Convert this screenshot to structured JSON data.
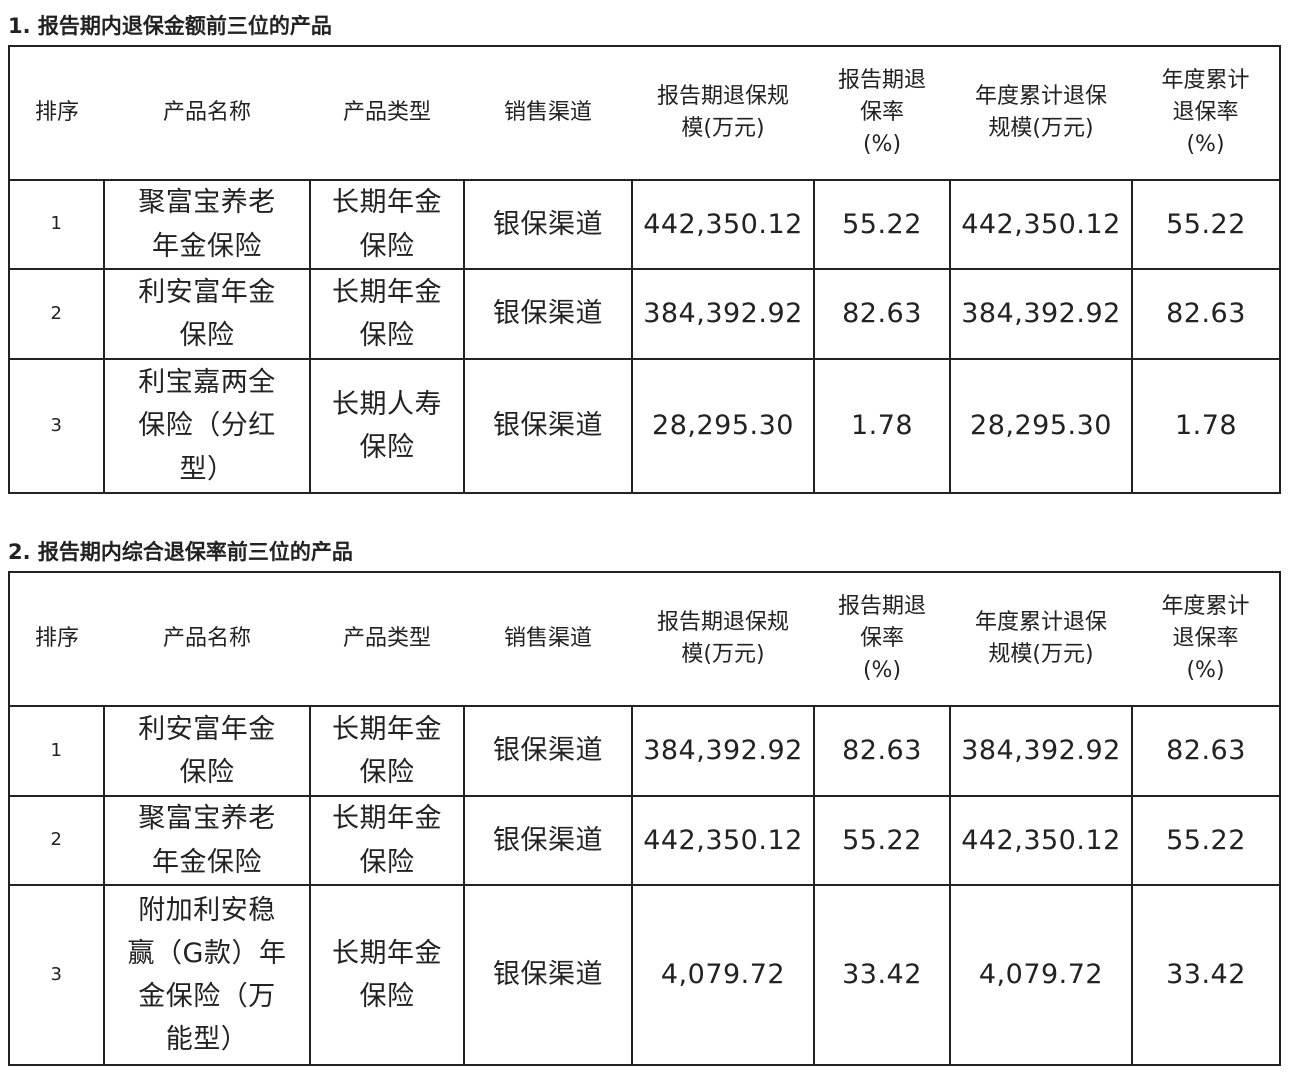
{
  "headers": [
    "排序",
    "产品名称",
    "产品类型",
    "销售渠道",
    "报告期退保规\n模(万元)",
    "报告期退\n保率\n(%)",
    "年度累计退保\n规模(万元)",
    "年度累计\n退保率\n(%)"
  ],
  "tables": [
    {
      "title": "1. 报告期内退保金额前三位的产品",
      "rows": [
        [
          "1",
          "聚富宝养老\n年金保险",
          "长期年金\n保险",
          "银保渠道",
          "442,350.12",
          "55.22",
          "442,350.12",
          "55.22"
        ],
        [
          "2",
          "利安富年金\n保险",
          "长期年金\n保险",
          "银保渠道",
          "384,392.92",
          "82.63",
          "384,392.92",
          "82.63"
        ],
        [
          "3",
          "利宝嘉两全\n保险（分红\n型）",
          "长期人寿\n保险",
          "银保渠道",
          "28,295.30",
          "1.78",
          "28,295.30",
          "1.78"
        ]
      ]
    },
    {
      "title": "2. 报告期内综合退保率前三位的产品",
      "rows": [
        [
          "1",
          "利安富年金\n保险",
          "长期年金\n保险",
          "银保渠道",
          "384,392.92",
          "82.63",
          "384,392.92",
          "82.63"
        ],
        [
          "2",
          "聚富宝养老\n年金保险",
          "长期年金\n保险",
          "银保渠道",
          "442,350.12",
          "55.22",
          "442,350.12",
          "55.22"
        ],
        [
          "3",
          "附加利安稳\n赢（G款）年\n金保险（万\n能型）",
          "长期年金\n保险",
          "银保渠道",
          "4,079.72",
          "33.42",
          "4,079.72",
          "33.42"
        ]
      ]
    }
  ]
}
